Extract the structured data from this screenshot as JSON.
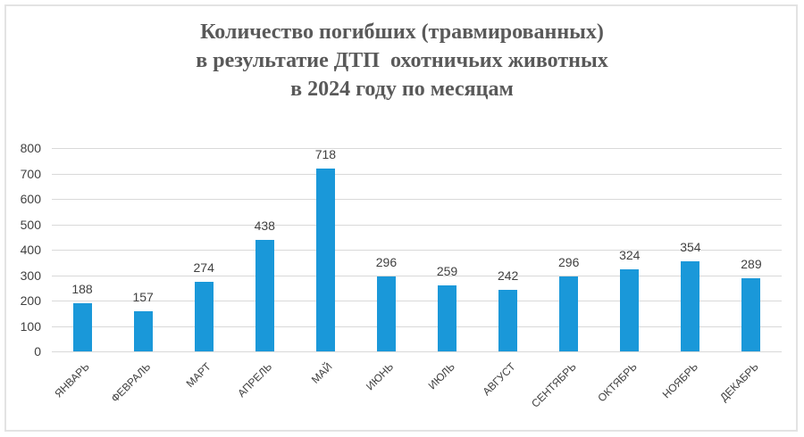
{
  "chart_data": {
    "type": "bar",
    "title": "Количество погибших (травмированных) в результатие ДТП  охотничьих животных в 2024 году по месяцам",
    "title_lines": [
      "Количество погибших (травмированных)",
      "в результатие ДТП  охотничьих животных",
      "в 2024 году по месяцам"
    ],
    "categories": [
      "ЯНВАРЬ",
      "ФЕВРАЛЬ",
      "МАРТ",
      "АПРЕЛЬ",
      "МАЙ",
      "ИЮНЬ",
      "ИЮЛЬ",
      "АВГУСТ",
      "СЕНТЯБРЬ",
      "ОКТЯБРЬ",
      "НОЯБРЬ",
      "ДЕКАБРЬ"
    ],
    "values": [
      188,
      157,
      274,
      438,
      718,
      296,
      259,
      242,
      296,
      324,
      354,
      289
    ],
    "xlabel": "",
    "ylabel": "",
    "ylim": [
      0,
      800
    ],
    "yticks": [
      0,
      100,
      200,
      300,
      400,
      500,
      600,
      700,
      800
    ],
    "grid": true,
    "legend": null,
    "data_labels": true,
    "bar_color": "#1a98d9"
  }
}
